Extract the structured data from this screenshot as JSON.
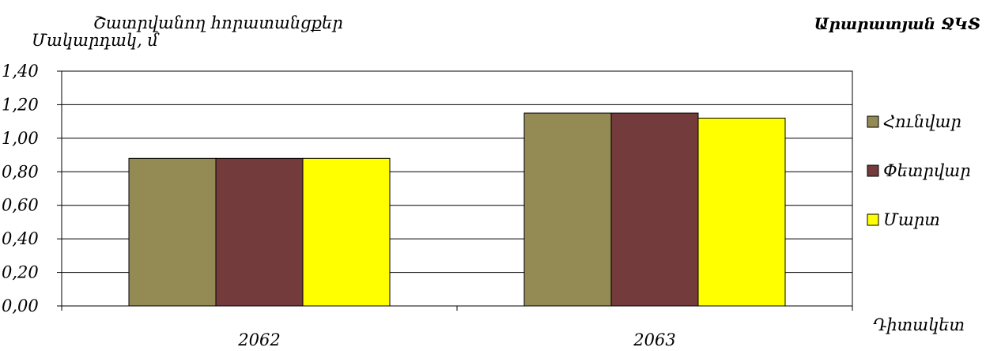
{
  "chart_data": {
    "type": "bar",
    "title": "Շատրվանող հորատանցքեր",
    "ylabel": "Մակարդակ, մ",
    "xlabel": "Դիտակետ",
    "corner_label": "Արարատյան ՋԿՏ",
    "categories": [
      "2062",
      "2063"
    ],
    "series": [
      {
        "name": "Հունվար",
        "color": "#948a54",
        "values": [
          0.88,
          1.15
        ]
      },
      {
        "name": "Փետրվար",
        "color": "#733b3c",
        "values": [
          0.88,
          1.15
        ]
      },
      {
        "name": "Մարտ",
        "color": "#ffff00",
        "values": [
          0.88,
          1.12
        ]
      }
    ],
    "ylim": [
      0,
      1.4
    ],
    "yticks": [
      "0,00",
      "0,20",
      "0,40",
      "0,60",
      "0,80",
      "1,00",
      "1,20",
      "1,40"
    ],
    "grid": true,
    "legend": "right"
  }
}
